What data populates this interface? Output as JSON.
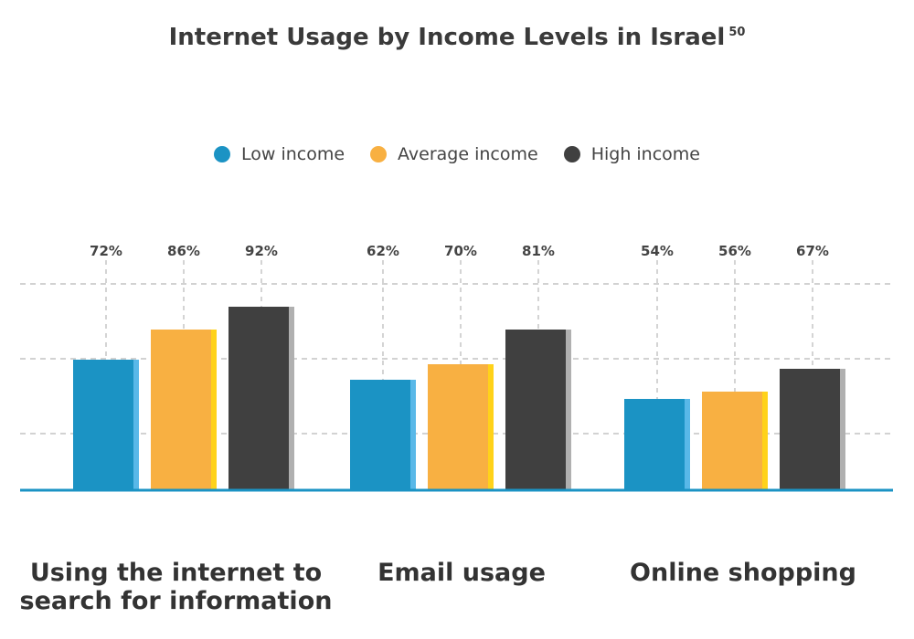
{
  "title": "Internet Usage by Income Levels in Israel",
  "title_sup": "50",
  "legend": [
    {
      "label": "Low income",
      "color": "#1b93c4"
    },
    {
      "label": "Average income",
      "color": "#f8b042"
    },
    {
      "label": "High income",
      "color": "#404040"
    }
  ],
  "chart_data": {
    "type": "bar",
    "title": "Internet Usage by Income Levels in Israel",
    "categories": [
      "Using the internet to search for information",
      "Email usage",
      "Online shopping"
    ],
    "series": [
      {
        "name": "Low income",
        "values": [
          72,
          62,
          54
        ],
        "color": "#1b93c4",
        "accent": "#59b8e8"
      },
      {
        "name": "Average income",
        "values": [
          86,
          70,
          56
        ],
        "color": "#f8b042",
        "accent": "#ffd21a"
      },
      {
        "name": "High income",
        "values": [
          92,
          81,
          67
        ],
        "color": "#404040",
        "accent": "#b0b0b0"
      }
    ],
    "value_labels": [
      [
        "72%",
        "86%",
        "92%"
      ],
      [
        "62%",
        "70%",
        "81%"
      ],
      [
        "54%",
        "56%",
        "67%"
      ]
    ],
    "grid": true,
    "legend_position": "top-center"
  },
  "category_labels": [
    "Using the internet to search for information",
    "Email usage",
    "Online shopping"
  ]
}
